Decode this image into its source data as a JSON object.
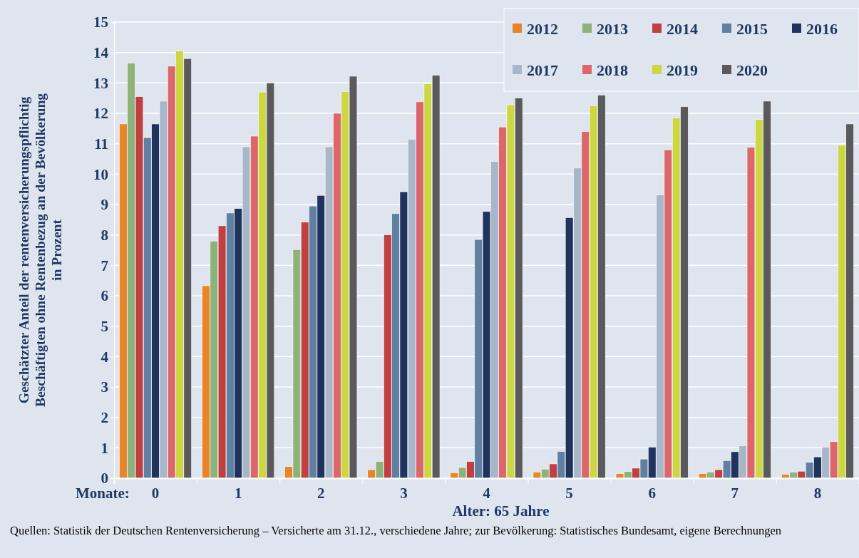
{
  "chart_data": {
    "type": "bar",
    "ylabel": "Geschätzter Anteil der rentenversicherungspflichtig\nBeschäftigten ohne Rentenbezug an der Bevölkerung\nin Prozent",
    "xlabel": "Alter: 65 Jahre",
    "categories": [
      "0",
      "1",
      "2",
      "3",
      "4",
      "5",
      "6",
      "7",
      "8"
    ],
    "series": [
      {
        "name": "2012",
        "color": "#e8842a",
        "values": [
          11.65,
          6.33,
          0.38,
          0.28,
          0.18,
          0.2,
          0.15,
          0.15,
          0.13
        ]
      },
      {
        "name": "2013",
        "color": "#8db37b",
        "values": [
          13.65,
          7.8,
          7.52,
          0.55,
          0.35,
          0.3,
          0.22,
          0.2,
          0.2
        ]
      },
      {
        "name": "2014",
        "color": "#c03f41",
        "values": [
          12.55,
          8.3,
          8.42,
          8.0,
          0.55,
          0.47,
          0.33,
          0.28,
          0.23
        ]
      },
      {
        "name": "2015",
        "color": "#5f80a0",
        "values": [
          11.2,
          8.72,
          8.95,
          8.7,
          7.85,
          0.88,
          0.63,
          0.58,
          0.52
        ]
      },
      {
        "name": "2016",
        "color": "#1f335e",
        "values": [
          11.65,
          8.87,
          9.3,
          9.42,
          8.77,
          8.57,
          1.02,
          0.87,
          0.7
        ]
      },
      {
        "name": "2017",
        "color": "#a7b6c8",
        "values": [
          12.4,
          10.9,
          10.9,
          11.15,
          10.42,
          10.2,
          9.32,
          1.07,
          1.02
        ]
      },
      {
        "name": "2018",
        "color": "#dc676b",
        "values": [
          13.55,
          11.25,
          12.0,
          12.38,
          11.55,
          11.4,
          10.8,
          10.88,
          1.2
        ]
      },
      {
        "name": "2019",
        "color": "#cdd643",
        "values": [
          14.05,
          12.7,
          12.72,
          12.97,
          12.28,
          12.25,
          11.85,
          11.8,
          10.95
        ]
      },
      {
        "name": "2020",
        "color": "#5a5a5c",
        "values": [
          13.8,
          13.0,
          13.22,
          13.25,
          12.5,
          12.6,
          12.22,
          12.4,
          11.65
        ]
      }
    ],
    "ylim": [
      0,
      15
    ],
    "yticks": [
      0,
      1,
      2,
      3,
      4,
      5,
      6,
      7,
      8,
      9,
      10,
      11,
      12,
      13,
      14,
      15
    ],
    "grid": "y",
    "legend": "top right",
    "annotations": [
      "Monate:",
      "Quellen: Statistik der Deutschen Rentenversicherung – Versicherte am 31.12., verschiedene Jahre; zur Bevölkerung: Statistisches Bundesamt, eigene Berechnungen"
    ]
  }
}
